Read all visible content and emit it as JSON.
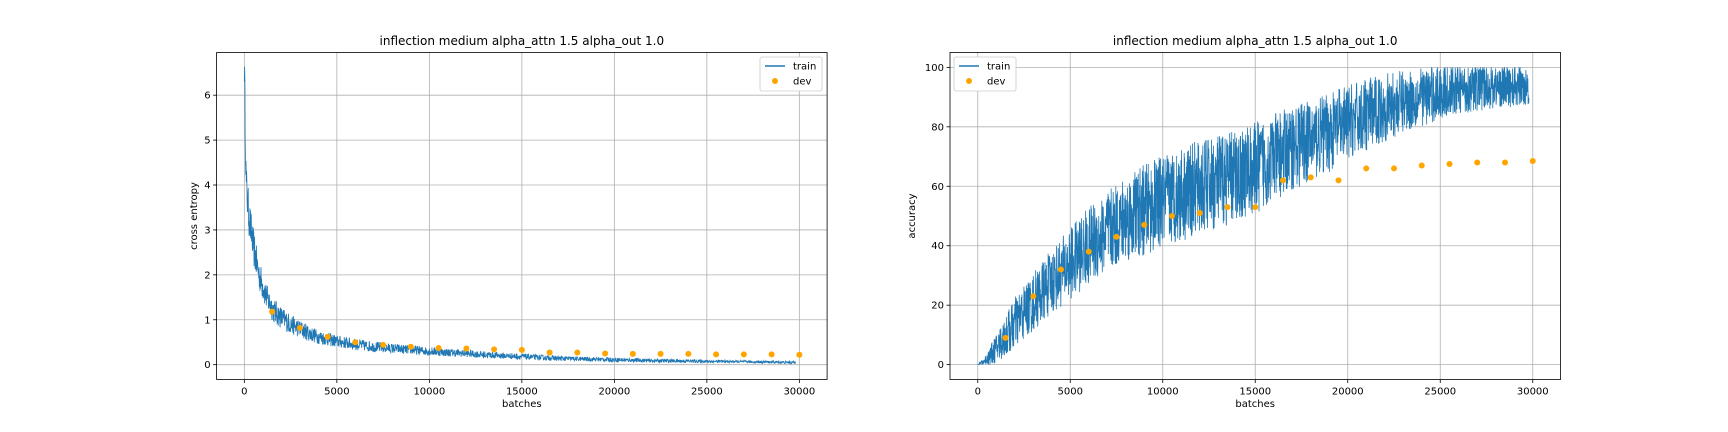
{
  "colors": {
    "train": "#1f77b4",
    "dev": "#ffa500",
    "grid": "#b0b0b0"
  },
  "chart_data": [
    {
      "type": "line",
      "title": "inflection medium alpha_attn 1.5 alpha_out 1.0",
      "xlabel": "batches",
      "ylabel": "cross entropy",
      "xlim": [
        -1500,
        31500
      ],
      "ylim": [
        -0.33,
        6.95
      ],
      "xticks": [
        0,
        5000,
        10000,
        15000,
        20000,
        25000,
        30000
      ],
      "yticks": [
        0,
        1,
        2,
        3,
        4,
        5,
        6
      ],
      "grid": true,
      "legend": "upper-right",
      "series": [
        {
          "name": "train",
          "kind": "noisy-line",
          "x": [
            0,
            100,
            250,
            500,
            800,
            1200,
            1600,
            2000,
            2500,
            3000,
            3500,
            4000,
            5000,
            6000,
            7000,
            8000,
            9000,
            10000,
            11000,
            12000,
            13000,
            14000,
            15000,
            16000,
            17000,
            18000,
            19000,
            20000,
            22000,
            24000,
            26000,
            28000,
            29800
          ],
          "y": [
            6.7,
            4.0,
            3.3,
            2.6,
            2.0,
            1.5,
            1.2,
            1.05,
            0.9,
            0.8,
            0.7,
            0.62,
            0.52,
            0.45,
            0.4,
            0.36,
            0.33,
            0.3,
            0.27,
            0.25,
            0.22,
            0.2,
            0.18,
            0.16,
            0.14,
            0.13,
            0.12,
            0.11,
            0.09,
            0.08,
            0.07,
            0.06,
            0.05
          ],
          "noise": [
            0.5,
            0.5,
            0.45,
            0.4,
            0.35,
            0.3,
            0.28,
            0.25,
            0.22,
            0.2,
            0.18,
            0.16,
            0.14,
            0.13,
            0.12,
            0.11,
            0.1,
            0.1,
            0.09,
            0.08,
            0.08,
            0.07,
            0.07,
            0.06,
            0.06,
            0.05,
            0.05,
            0.05,
            0.04,
            0.04,
            0.03,
            0.03,
            0.03
          ]
        },
        {
          "name": "dev",
          "kind": "points",
          "x": [
            1500,
            3000,
            4500,
            6000,
            7500,
            9000,
            10500,
            12000,
            13500,
            15000,
            16500,
            18000,
            19500,
            21000,
            22500,
            24000,
            25500,
            27000,
            28500,
            30000
          ],
          "y": [
            1.18,
            0.82,
            0.62,
            0.5,
            0.44,
            0.4,
            0.37,
            0.36,
            0.34,
            0.33,
            0.27,
            0.27,
            0.25,
            0.24,
            0.24,
            0.24,
            0.23,
            0.23,
            0.23,
            0.22
          ]
        }
      ]
    },
    {
      "type": "line",
      "title": "inflection medium alpha_attn 1.5 alpha_out 1.0",
      "xlabel": "batches",
      "ylabel": "accuracy",
      "xlim": [
        -1500,
        31500
      ],
      "ylim": [
        -5,
        105
      ],
      "xticks": [
        0,
        5000,
        10000,
        15000,
        20000,
        25000,
        30000
      ],
      "yticks": [
        0,
        20,
        40,
        60,
        80,
        100
      ],
      "grid": true,
      "legend": "upper-left",
      "series": [
        {
          "name": "train",
          "kind": "noisy-band",
          "x": [
            0,
            300,
            600,
            1000,
            1500,
            2000,
            3000,
            4000,
            5000,
            6000,
            7000,
            8000,
            9000,
            10000,
            11000,
            12000,
            13000,
            14000,
            15000,
            16000,
            17000,
            18000,
            19000,
            20000,
            21000,
            22000,
            23000,
            24000,
            25000,
            26000,
            27000,
            28000,
            29000,
            29800
          ],
          "low": [
            0,
            0,
            0,
            1,
            3,
            6,
            12,
            18,
            23,
            28,
            32,
            36,
            38,
            41,
            43,
            45,
            47,
            49,
            52,
            56,
            60,
            63,
            66,
            70,
            73,
            76,
            79,
            81,
            83,
            85,
            86,
            87,
            87,
            88
          ],
          "high": [
            0,
            2,
            5,
            10,
            16,
            22,
            30,
            38,
            45,
            52,
            57,
            62,
            66,
            69,
            72,
            74,
            76,
            78,
            80,
            83,
            86,
            88,
            90,
            93,
            95,
            97,
            98,
            99,
            100,
            100,
            100,
            100,
            100,
            100
          ]
        },
        {
          "name": "dev",
          "kind": "points",
          "x": [
            1500,
            3000,
            4500,
            6000,
            7500,
            9000,
            10500,
            12000,
            13500,
            15000,
            16500,
            18000,
            19500,
            21000,
            22500,
            24000,
            25500,
            27000,
            28500,
            30000
          ],
          "y": [
            9,
            23,
            32,
            38,
            43,
            47,
            50,
            51,
            53,
            53,
            62,
            63,
            62,
            66,
            66,
            67,
            67.5,
            68,
            68,
            68.5
          ]
        }
      ]
    }
  ]
}
